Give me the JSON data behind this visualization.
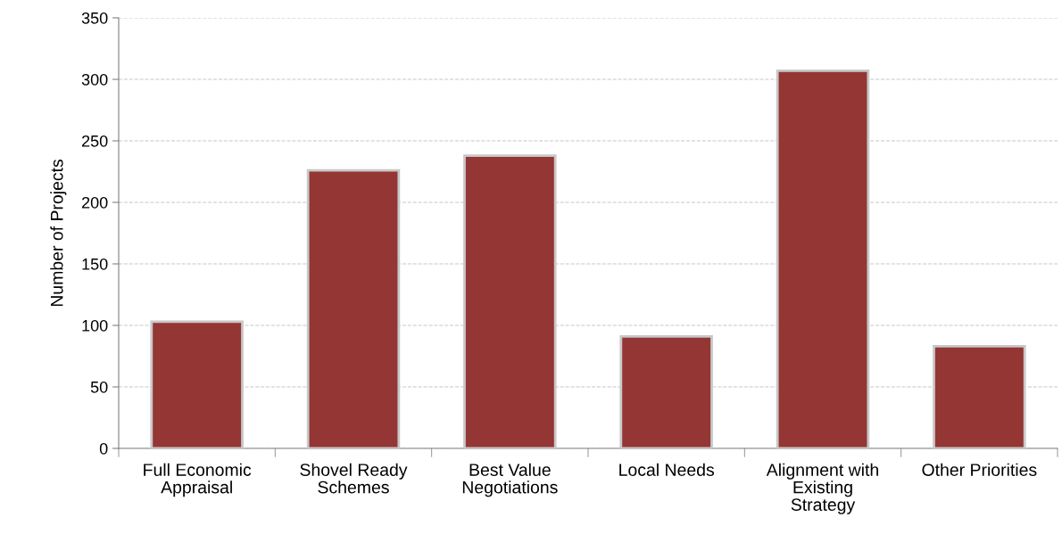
{
  "chart_data": {
    "type": "bar",
    "ylabel": "Number of Projects",
    "categories": [
      "Full Economic\nAppraisal",
      "Shovel Ready\nSchemes",
      "Best Value\nNegotiations",
      "Local Needs",
      "Alignment with\nExisting\nStrategy",
      "Other Priorities"
    ],
    "values": [
      103,
      226,
      238,
      91,
      307,
      83
    ],
    "color": "#943634",
    "ylim": [
      0,
      350
    ],
    "yticks": [
      0,
      50,
      100,
      150,
      200,
      250,
      300,
      350
    ],
    "grid": "y"
  }
}
